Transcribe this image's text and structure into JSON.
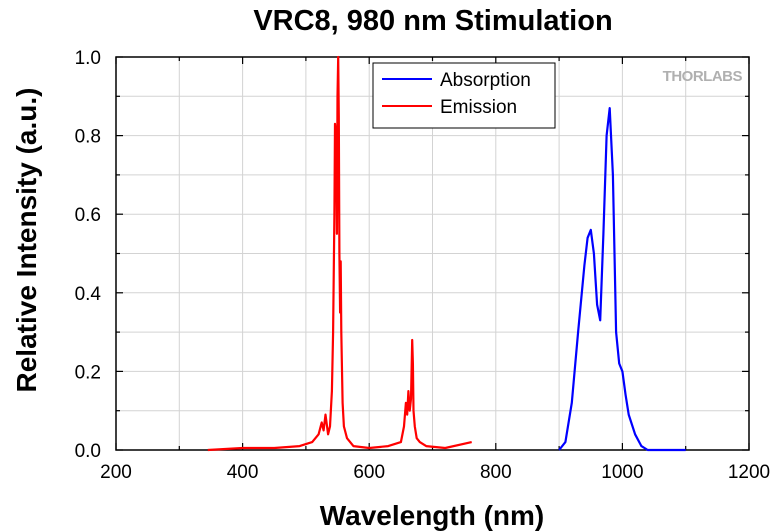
{
  "chart_data": {
    "type": "line",
    "title": "VRC8, 980 nm Stimulation",
    "xlabel": "Wavelength (nm)",
    "ylabel": "Relative Intensity (a.u.)",
    "xlim": [
      200,
      1200
    ],
    "ylim": [
      0,
      1.0
    ],
    "x_ticks": [
      "200",
      "400",
      "600",
      "800",
      "1000",
      "1200"
    ],
    "y_ticks": [
      "0.0",
      "0.2",
      "0.4",
      "0.6",
      "0.8",
      "1.0"
    ],
    "grid": true,
    "legend_position": "top-center",
    "watermark": "THORLABS",
    "series": [
      {
        "name": "Absorption",
        "color": "#0000ff",
        "x": [
          900,
          910,
          920,
          930,
          940,
          945,
          950,
          955,
          960,
          965,
          970,
          975,
          980,
          985,
          990,
          995,
          1000,
          1005,
          1010,
          1020,
          1030,
          1040,
          1060,
          1080,
          1100
        ],
        "y": [
          0.0,
          0.02,
          0.12,
          0.3,
          0.47,
          0.54,
          0.56,
          0.5,
          0.37,
          0.33,
          0.55,
          0.8,
          0.87,
          0.7,
          0.3,
          0.22,
          0.2,
          0.14,
          0.09,
          0.04,
          0.01,
          0.0,
          0.0,
          0.0,
          0.0
        ]
      },
      {
        "name": "Emission",
        "color": "#ff0000",
        "x": [
          345,
          400,
          450,
          490,
          510,
          520,
          525,
          528,
          531,
          535,
          538,
          541,
          543,
          545,
          546,
          548,
          549,
          550,
          551,
          552,
          553,
          554,
          555,
          556,
          558,
          560,
          565,
          575,
          600,
          630,
          650,
          655,
          658,
          660,
          662,
          664,
          666,
          668,
          669,
          670,
          672,
          675,
          680,
          690,
          720,
          762
        ],
        "y": [
          0.0,
          0.005,
          0.005,
          0.01,
          0.02,
          0.04,
          0.07,
          0.05,
          0.09,
          0.04,
          0.06,
          0.15,
          0.3,
          0.6,
          0.83,
          0.78,
          0.55,
          0.9,
          1.0,
          0.85,
          0.5,
          0.35,
          0.48,
          0.3,
          0.12,
          0.06,
          0.03,
          0.01,
          0.005,
          0.01,
          0.02,
          0.06,
          0.12,
          0.09,
          0.15,
          0.1,
          0.13,
          0.28,
          0.22,
          0.1,
          0.06,
          0.03,
          0.02,
          0.01,
          0.005,
          0.02
        ]
      }
    ]
  }
}
